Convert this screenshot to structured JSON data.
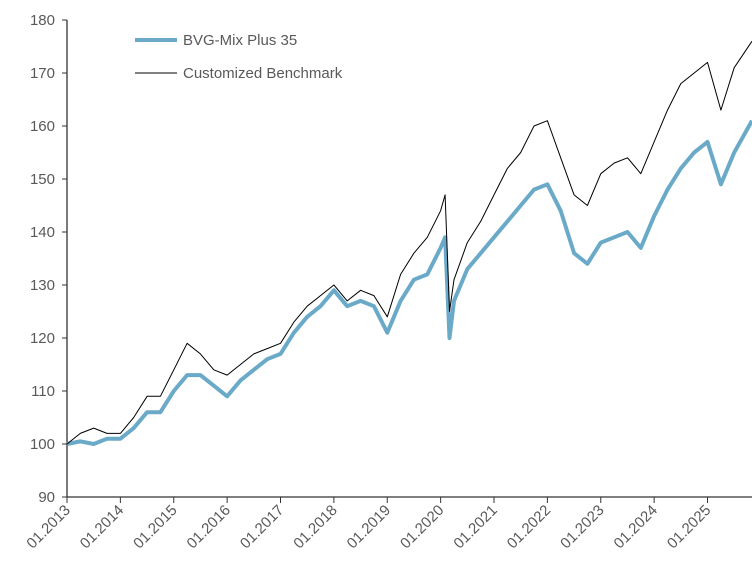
{
  "chart_data": {
    "type": "line",
    "x": [
      "01.2013",
      "04.2013",
      "07.2013",
      "10.2013",
      "01.2014",
      "04.2014",
      "07.2014",
      "10.2014",
      "01.2015",
      "04.2015",
      "07.2015",
      "10.2015",
      "01.2016",
      "04.2016",
      "07.2016",
      "10.2016",
      "01.2017",
      "04.2017",
      "07.2017",
      "10.2017",
      "01.2018",
      "04.2018",
      "07.2018",
      "10.2018",
      "01.2019",
      "04.2019",
      "07.2019",
      "10.2019",
      "01.2020",
      "02.2020",
      "03.2020",
      "04.2020",
      "07.2020",
      "10.2020",
      "01.2021",
      "04.2021",
      "07.2021",
      "10.2021",
      "01.2022",
      "04.2022",
      "07.2022",
      "10.2022",
      "01.2023",
      "04.2023",
      "07.2023",
      "10.2023",
      "01.2024",
      "04.2024",
      "07.2024",
      "10.2024",
      "01.2025",
      "04.2025",
      "07.2025",
      "11.2025"
    ],
    "series": [
      {
        "name": "BVG-Mix Plus 35",
        "color": "#6aaac8",
        "width": 4,
        "values": [
          100,
          100.5,
          100,
          101,
          101,
          103,
          106,
          106,
          110,
          113,
          113,
          111,
          109,
          112,
          114,
          116,
          117,
          121,
          124,
          126,
          129,
          126,
          127,
          126,
          121,
          127,
          131,
          132,
          137,
          139,
          120,
          127,
          133,
          136,
          139,
          142,
          145,
          148,
          149,
          144,
          136,
          134,
          138,
          139,
          140,
          137,
          143,
          148,
          152,
          155,
          157,
          149,
          155,
          161
        ]
      },
      {
        "name": "Customized Benchmark",
        "color": "#000000",
        "width": 1,
        "values": [
          100,
          102,
          103,
          102,
          102,
          105,
          109,
          109,
          114,
          119,
          117,
          114,
          113,
          115,
          117,
          118,
          119,
          123,
          126,
          128,
          130,
          127,
          129,
          128,
          124,
          132,
          136,
          139,
          144,
          147,
          125,
          131,
          138,
          142,
          147,
          152,
          155,
          160,
          161,
          154,
          147,
          145,
          151,
          153,
          154,
          151,
          157,
          163,
          168,
          170,
          172,
          163,
          171,
          176
        ]
      }
    ],
    "xlim": [
      "01.2013",
      "11.2025"
    ],
    "xticks": [
      "01.2013",
      "01.2014",
      "01.2015",
      "01.2016",
      "01.2017",
      "01.2018",
      "01.2019",
      "01.2020",
      "01.2021",
      "01.2022",
      "01.2023",
      "01.2024",
      "01.2025"
    ],
    "ylim": [
      90,
      180
    ],
    "yticks": [
      90,
      100,
      110,
      120,
      130,
      140,
      150,
      160,
      170,
      180
    ],
    "legend": "top-left",
    "grid": false
  }
}
